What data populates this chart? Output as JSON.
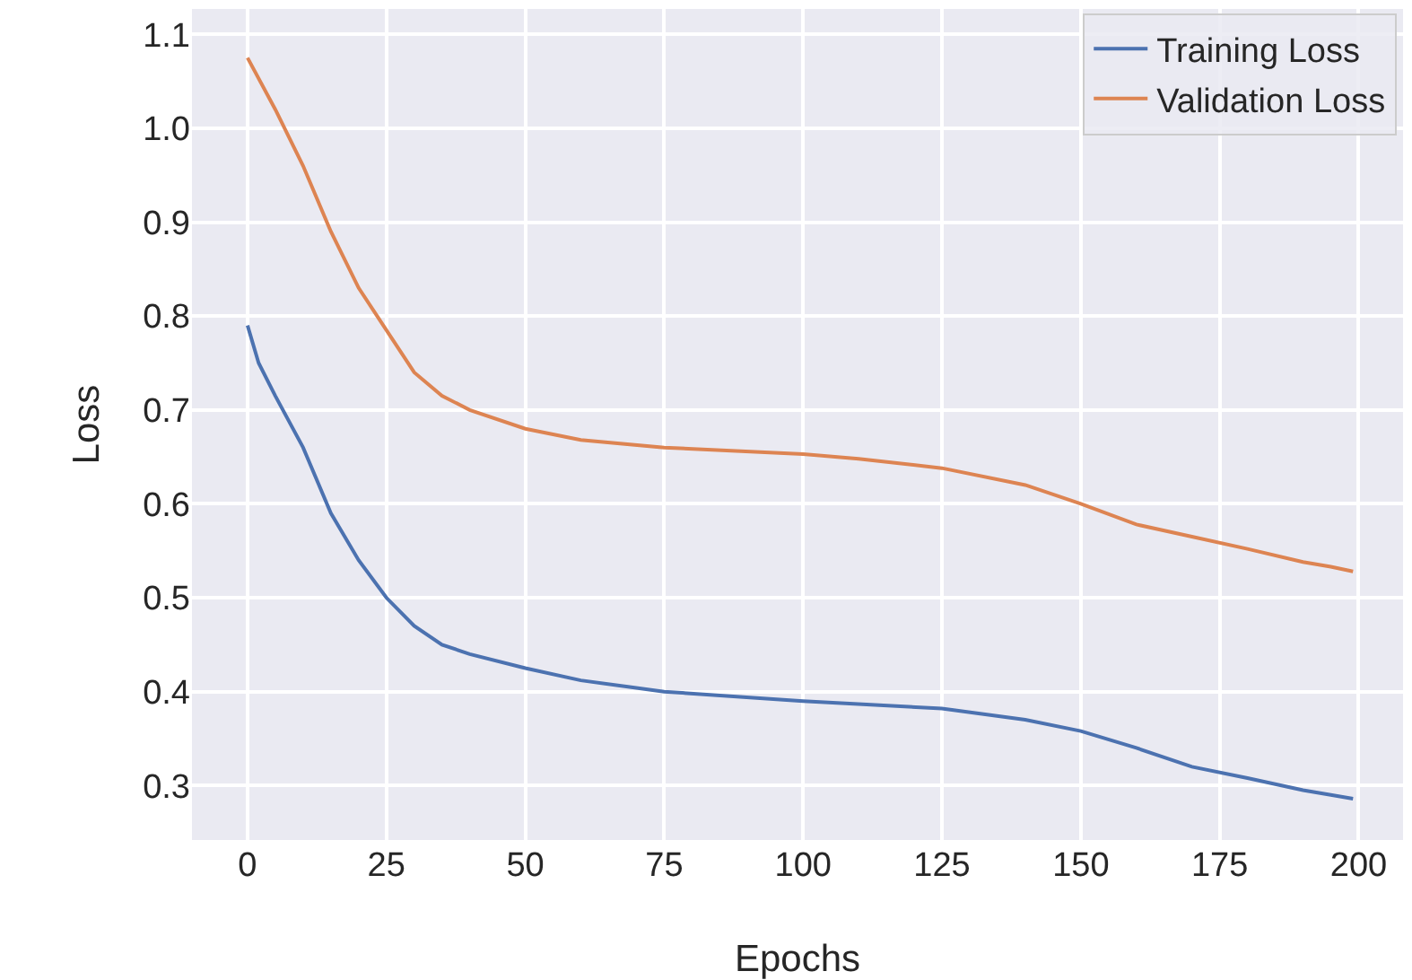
{
  "chart_data": {
    "type": "line",
    "xlabel": "Epochs",
    "ylabel": "Loss",
    "xlim": [
      -10,
      208
    ],
    "xticks": [
      0,
      25,
      50,
      75,
      100,
      125,
      150,
      175,
      200
    ],
    "ylim": [
      0.242,
      1.127
    ],
    "yticks": [
      0.3,
      0.4,
      0.5,
      0.6,
      0.7,
      0.8,
      0.9,
      {
        "value": 1,
        "label": "1.0"
      },
      1.1
    ],
    "grid": true,
    "legend": "top right",
    "line_style": "solid",
    "marker": "none",
    "series": [
      {
        "name": "Training Loss",
        "color": "#4c72b0",
        "x": [
          0,
          2,
          5,
          10,
          15,
          20,
          25,
          30,
          35,
          40,
          50,
          60,
          75,
          100,
          125,
          140,
          150,
          160,
          170,
          180,
          190,
          195,
          199
        ],
        "values": [
          0.79,
          0.75,
          0.715,
          0.66,
          0.59,
          0.54,
          0.5,
          0.47,
          0.45,
          0.44,
          0.425,
          0.412,
          0.4,
          0.39,
          0.382,
          0.37,
          0.358,
          0.34,
          0.32,
          0.308,
          0.295,
          0.29,
          0.286
        ]
      },
      {
        "name": "Validation Loss",
        "color": "#dd8452",
        "x": [
          0,
          5,
          10,
          15,
          20,
          25,
          30,
          35,
          40,
          50,
          60,
          75,
          100,
          110,
          125,
          140,
          150,
          160,
          170,
          180,
          190,
          195,
          199
        ],
        "values": [
          1.075,
          1.02,
          0.96,
          0.89,
          0.83,
          0.785,
          0.74,
          0.715,
          0.7,
          0.68,
          0.668,
          0.66,
          0.653,
          0.648,
          0.638,
          0.62,
          0.6,
          0.578,
          0.565,
          0.552,
          0.538,
          0.533,
          0.528
        ]
      }
    ]
  }
}
